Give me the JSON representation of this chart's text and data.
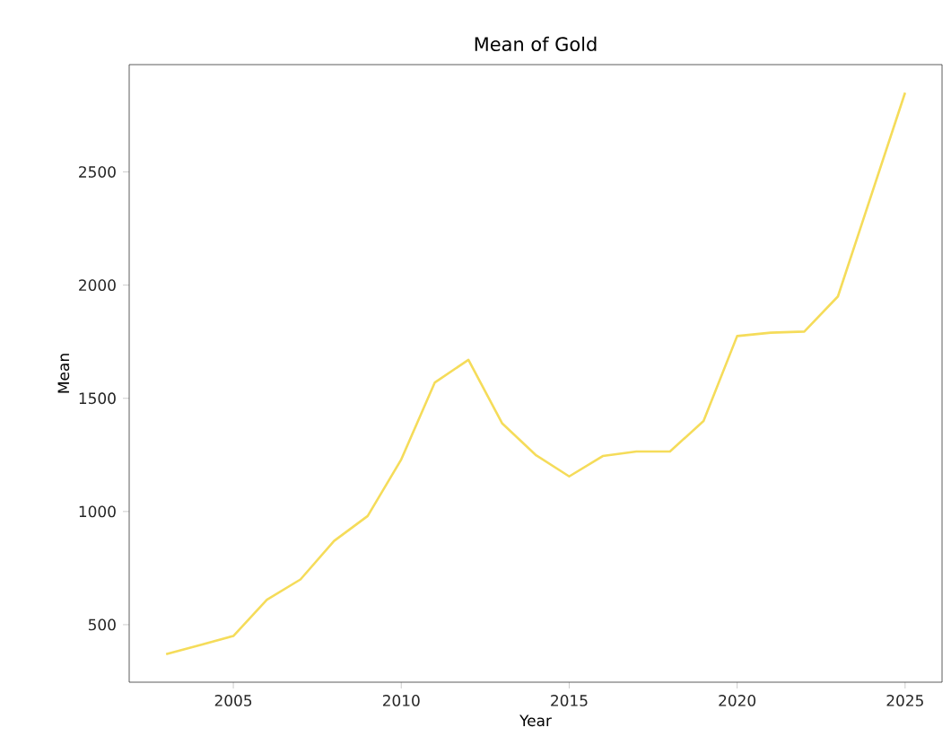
{
  "chart_data": {
    "type": "line",
    "title": "Mean of Gold",
    "xlabel": "Year",
    "ylabel": "Mean",
    "x": [
      2003,
      2004,
      2005,
      2006,
      2007,
      2008,
      2009,
      2010,
      2011,
      2012,
      2013,
      2014,
      2015,
      2016,
      2017,
      2018,
      2019,
      2020,
      2021,
      2022,
      2023,
      2024,
      2025
    ],
    "series": [
      {
        "color": "#f5dc5a",
        "values": [
          370,
          410,
          450,
          610,
          700,
          870,
          980,
          1230,
          1570,
          1670,
          1390,
          1250,
          1155,
          1245,
          1265,
          1265,
          1400,
          1775,
          1790,
          1795,
          1950,
          2400,
          2850
        ]
      }
    ],
    "xlim": [
      2001.9,
      2026.1
    ],
    "ylim": [
      246,
      2974
    ],
    "xticks": [
      2005,
      2010,
      2015,
      2020,
      2025
    ],
    "yticks": [
      500,
      1000,
      1500,
      2000,
      2500
    ],
    "grid": false
  }
}
